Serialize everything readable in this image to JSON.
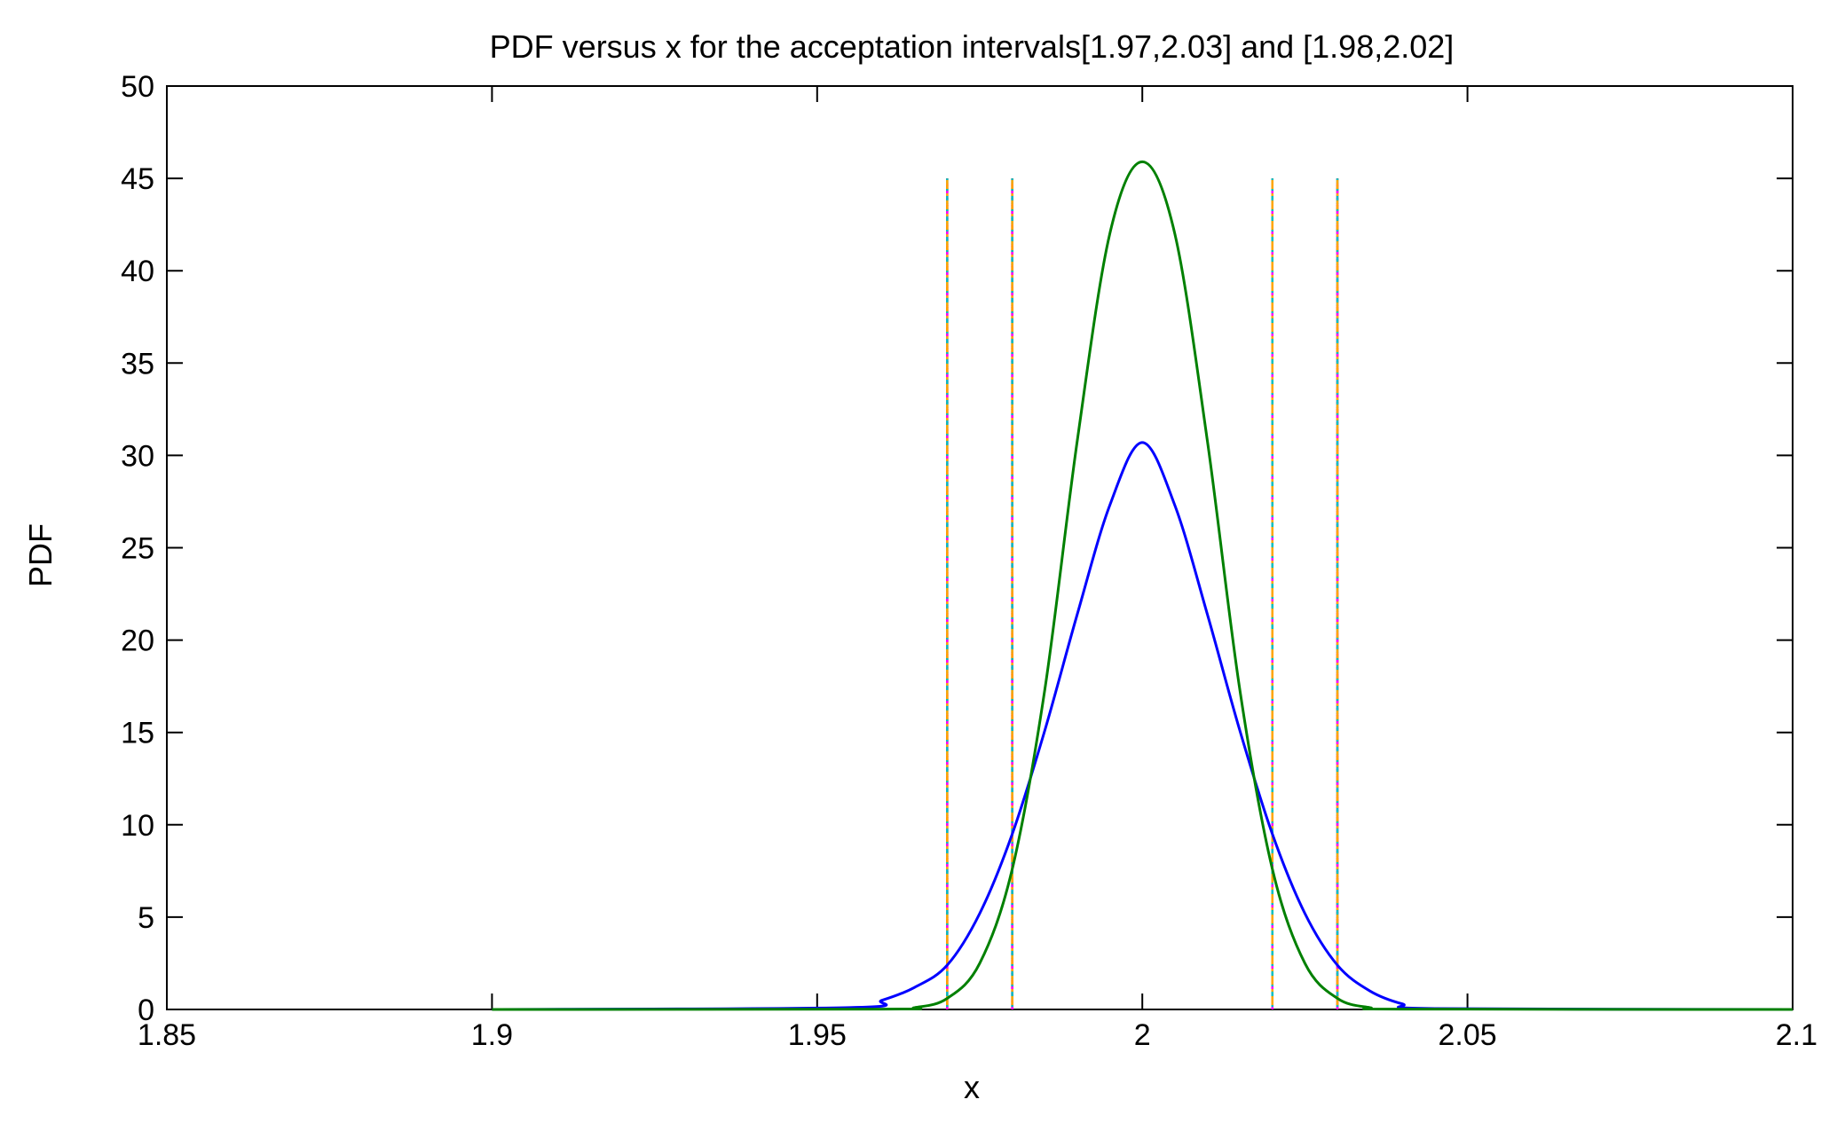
{
  "chart_data": {
    "type": "line",
    "title": "PDF versus x for the acceptation intervals[1.97,2.03] and [1.98,2.02]",
    "xlabel": "x",
    "ylabel": "PDF",
    "xlim": [
      1.85,
      2.1
    ],
    "ylim": [
      0,
      50
    ],
    "xticks": [
      1.85,
      1.9,
      1.95,
      2,
      2.05,
      2.1
    ],
    "xtick_labels": [
      "1.85",
      "1.9",
      "1.95",
      "2",
      "2.05",
      "2.1"
    ],
    "yticks": [
      0,
      5,
      10,
      15,
      20,
      25,
      30,
      35,
      40,
      45,
      50
    ],
    "ytick_labels": [
      "0",
      "5",
      "10",
      "15",
      "20",
      "25",
      "30",
      "35",
      "40",
      "45",
      "50"
    ],
    "grid": false,
    "legend": "none",
    "series": [
      {
        "color": "#0000ff",
        "style": "solid",
        "x": [
          1.9,
          1.955,
          1.96,
          1.965,
          1.97,
          1.975,
          1.98,
          1.985,
          1.99,
          1.995,
          2.0,
          2.005,
          2.01,
          2.015,
          2.02,
          2.025,
          2.03,
          2.035,
          2.04,
          2.045,
          2.1
        ],
        "y": [
          0,
          0.1,
          0.5,
          1.2,
          2.4,
          5.2,
          9.5,
          15.1,
          21.4,
          27.3,
          30.7,
          27.3,
          21.4,
          15.1,
          9.5,
          5.2,
          2.4,
          1.0,
          0.3,
          0.05,
          0
        ]
      },
      {
        "color": "#008000",
        "style": "solid",
        "x": [
          1.9,
          1.96,
          1.965,
          1.97,
          1.975,
          1.98,
          1.985,
          1.99,
          1.995,
          2.0,
          2.005,
          2.01,
          2.015,
          2.02,
          2.025,
          2.03,
          2.035,
          2.04,
          2.1
        ],
        "y": [
          0,
          0.02,
          0.1,
          0.6,
          2.5,
          7.6,
          17.3,
          30.8,
          42.0,
          45.9,
          42.0,
          30.8,
          17.3,
          7.6,
          2.5,
          0.6,
          0.1,
          0.02,
          0
        ]
      }
    ],
    "vertical_lines": {
      "x": [
        1.97,
        1.98,
        2.02,
        2.03
      ],
      "ymax": 45,
      "style": "dash-dot",
      "colors": [
        "#ff0000",
        "#ff00ff",
        "#00bfbf",
        "#ffa500"
      ]
    }
  }
}
